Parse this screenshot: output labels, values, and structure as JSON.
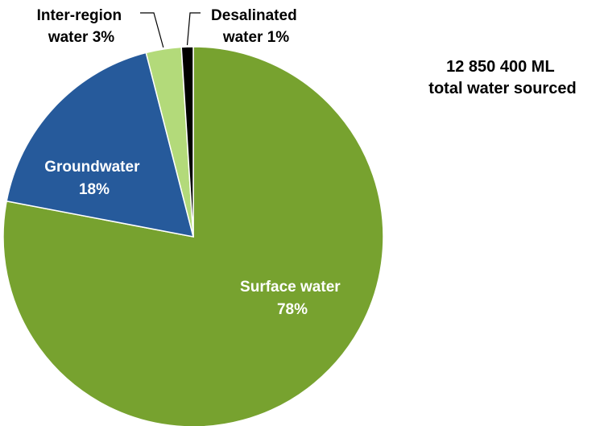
{
  "chart_data": {
    "type": "pie",
    "title": "",
    "summary": {
      "line1": "12 850 400 ML",
      "line2": "total water sourced"
    },
    "slices": [
      {
        "name": "Surface water",
        "value": 78,
        "label_line1": "Surface water",
        "label_line2": "78%",
        "color": "#77A22F"
      },
      {
        "name": "Groundwater",
        "value": 18,
        "label_line1": "Groundwater",
        "label_line2": "18%",
        "color": "#265A9B"
      },
      {
        "name": "Inter-region water",
        "value": 3,
        "label_line1": "Inter-region",
        "label_line2": "water 3%",
        "color": "#B3DA7A"
      },
      {
        "name": "Desalinated water",
        "value": 1,
        "label_line1": "Desalinated",
        "label_line2": "water 1%",
        "color": "#000000"
      }
    ]
  }
}
